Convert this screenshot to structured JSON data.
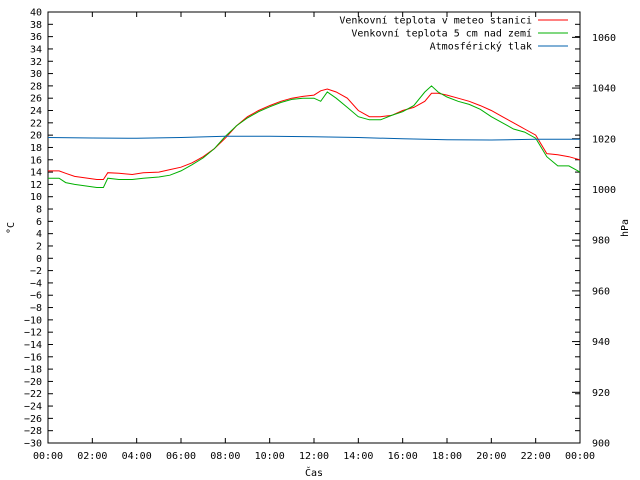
{
  "chart_data": {
    "type": "line",
    "xlabel": "Čas",
    "ylabel": "°C",
    "y2label": "hPa",
    "ylim": [
      -30,
      40
    ],
    "y2lim": [
      900,
      1070
    ],
    "xlim": [
      0,
      24
    ],
    "grid": false,
    "legend_position": "top-right",
    "x_ticks": [
      "00:00",
      "02:00",
      "04:00",
      "06:00",
      "08:00",
      "10:00",
      "12:00",
      "14:00",
      "16:00",
      "18:00",
      "20:00",
      "22:00",
      "00:00"
    ],
    "y_ticks": [
      40,
      38,
      36,
      34,
      32,
      30,
      28,
      26,
      24,
      22,
      20,
      18,
      16,
      14,
      12,
      10,
      8,
      6,
      4,
      2,
      0,
      -2,
      -4,
      -6,
      -8,
      -10,
      -12,
      -14,
      -16,
      -18,
      -20,
      -22,
      -24,
      -26,
      -28,
      -30
    ],
    "y2_ticks": [
      1060,
      1040,
      1020,
      1000,
      980,
      960,
      940,
      920,
      900
    ],
    "series": [
      {
        "name": "Venkovní teplota v meteo stanici",
        "axis": "y",
        "color": "#ff0000",
        "x": [
          0,
          0.5,
          0.8,
          1.2,
          1.8,
          2.2,
          2.5,
          2.7,
          3.2,
          3.8,
          4.3,
          5,
          5.5,
          6,
          6.5,
          7,
          7.5,
          8,
          8.5,
          9,
          9.5,
          10,
          10.5,
          11,
          11.5,
          12,
          12.3,
          12.6,
          13,
          13.5,
          14,
          14.5,
          15,
          15.5,
          16,
          16.5,
          17,
          17.3,
          17.6,
          18,
          18.5,
          19,
          19.5,
          20,
          20.5,
          21,
          21.5,
          22,
          22.5,
          23,
          23.5,
          24
        ],
        "values": [
          14.2,
          14.2,
          13.8,
          13.3,
          13,
          12.8,
          12.8,
          13.9,
          13.8,
          13.6,
          13.9,
          14,
          14.4,
          14.8,
          15.5,
          16.5,
          17.8,
          19.5,
          21.5,
          23,
          24,
          24.8,
          25.5,
          26,
          26.3,
          26.5,
          27.2,
          27.5,
          27,
          26,
          24,
          23,
          23,
          23.2,
          24,
          24.5,
          25.5,
          26.8,
          26.8,
          26.5,
          26,
          25.5,
          24.8,
          24,
          23,
          22,
          21,
          20,
          17,
          16.8,
          16.5,
          16
        ]
      },
      {
        "name": "Venkovní teplota 5 cm nad zemí",
        "axis": "y",
        "color": "#00b000",
        "x": [
          0,
          0.5,
          0.8,
          1.2,
          1.8,
          2.2,
          2.5,
          2.7,
          3.2,
          3.8,
          4.3,
          5,
          5.5,
          6,
          6.5,
          7,
          7.5,
          8,
          8.5,
          9,
          9.5,
          10,
          10.5,
          11,
          11.5,
          12,
          12.3,
          12.6,
          13,
          13.5,
          14,
          14.5,
          15,
          15.5,
          16,
          16.5,
          17,
          17.3,
          17.6,
          18,
          18.5,
          19,
          19.5,
          20,
          20.5,
          21,
          21.5,
          22,
          22.5,
          23,
          23.5,
          24
        ],
        "values": [
          13,
          13,
          12.3,
          12,
          11.7,
          11.5,
          11.5,
          13,
          12.8,
          12.8,
          13,
          13.2,
          13.5,
          14.2,
          15.2,
          16.3,
          17.8,
          19.8,
          21.5,
          22.8,
          23.8,
          24.6,
          25.3,
          25.8,
          26,
          26,
          25.5,
          27,
          26,
          24.5,
          23,
          22.5,
          22.5,
          23.2,
          23.8,
          24.8,
          27,
          28,
          27,
          26.2,
          25.5,
          25,
          24.2,
          23,
          22,
          21,
          20.5,
          19.5,
          16.5,
          15,
          15,
          14
        ]
      },
      {
        "name": "Atmosférický tlak",
        "axis": "y2",
        "color": "#0060ad",
        "x": [
          0,
          2,
          4,
          6,
          8,
          10,
          12,
          14,
          16,
          18,
          20,
          22,
          24
        ],
        "values": [
          1020.5,
          1020.3,
          1020.2,
          1020.5,
          1021,
          1021,
          1020.8,
          1020.5,
          1020,
          1019.6,
          1019.5,
          1019.8,
          1019.8
        ]
      }
    ]
  }
}
